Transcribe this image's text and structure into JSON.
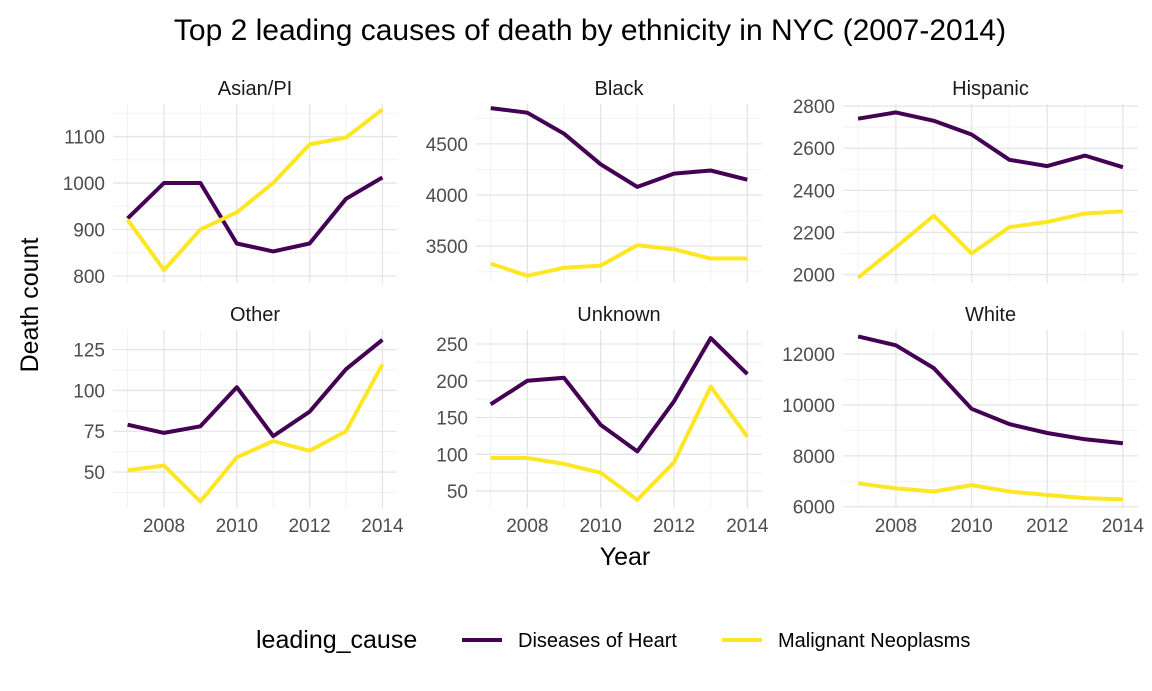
{
  "chart_data": {
    "type": "line",
    "title": "Top 2 leading causes of death by ethnicity in NYC (2007-2014)",
    "xlabel": "Year",
    "ylabel": "Death count",
    "x": [
      2007,
      2008,
      2009,
      2010,
      2011,
      2012,
      2013,
      2014
    ],
    "x_ticks": [
      "2008",
      "2010",
      "2012",
      "2014"
    ],
    "legend": {
      "title": "leading_cause",
      "placement": "bottom",
      "entries": [
        {
          "name": "Diseases of Heart",
          "color": "#440154"
        },
        {
          "name": "Malignant Neoplasms",
          "color": "#FDE725"
        }
      ]
    },
    "grid": true,
    "facets": [
      {
        "label": "Asian/PI",
        "ylim": [
          785,
          1170
        ],
        "y_ticks": [
          "800",
          "900",
          "1000",
          "1100"
        ],
        "series": [
          {
            "name": "Diseases of Heart",
            "values": [
              924,
              1000,
              1000,
              870,
              853,
              870,
              966,
              1012
            ]
          },
          {
            "name": "Malignant Neoplasms",
            "values": [
              921,
              813,
              900,
              937,
              1000,
              1083,
              1098,
              1158
            ]
          }
        ]
      },
      {
        "label": "Black",
        "ylim": [
          3140,
          4890
        ],
        "y_ticks": [
          "3500",
          "4000",
          "4500"
        ],
        "series": [
          {
            "name": "Diseases of Heart",
            "values": [
              4850,
              4805,
              4600,
              4300,
              4080,
              4210,
              4240,
              4150
            ]
          },
          {
            "name": "Malignant Neoplasms",
            "values": [
              3330,
              3210,
              3290,
              3310,
              3510,
              3470,
              3380,
              3380
            ]
          }
        ]
      },
      {
        "label": "Hispanic",
        "ylim": [
          1960,
          2810
        ],
        "y_ticks": [
          "2000",
          "2200",
          "2400",
          "2600",
          "2800"
        ],
        "series": [
          {
            "name": "Diseases of Heart",
            "values": [
              2740,
              2770,
              2730,
              2665,
              2545,
              2515,
              2565,
              2510
            ]
          },
          {
            "name": "Malignant Neoplasms",
            "values": [
              1985,
              2130,
              2280,
              2100,
              2225,
              2250,
              2290,
              2300
            ]
          }
        ]
      },
      {
        "label": "Other",
        "ylim": [
          28,
          137
        ],
        "y_ticks": [
          "50",
          "75",
          "100",
          "125"
        ],
        "series": [
          {
            "name": "Diseases of Heart",
            "values": [
              79,
              74,
              78,
              102,
              72,
              87,
              113,
              131
            ]
          },
          {
            "name": "Malignant Neoplasms",
            "values": [
              51,
              54,
              32,
              59,
              69,
              63,
              75,
              116
            ]
          }
        ]
      },
      {
        "label": "Unknown",
        "ylim": [
          27,
          269
        ],
        "y_ticks": [
          "50",
          "100",
          "150",
          "200",
          "250"
        ],
        "series": [
          {
            "name": "Diseases of Heart",
            "values": [
              168,
              200,
              204,
              140,
              104,
              172,
              258,
              209
            ]
          },
          {
            "name": "Malignant Neoplasms",
            "values": [
              95,
              95,
              87,
              75,
              38,
              89,
              192,
              124
            ]
          }
        ]
      },
      {
        "label": "White",
        "ylim": [
          5950,
          12950
        ],
        "y_ticks": [
          "6000",
          "8000",
          "10000",
          "12000"
        ],
        "series": [
          {
            "name": "Diseases of Heart",
            "values": [
              12700,
              12350,
              11450,
              9850,
              9250,
              8900,
              8650,
              8500
            ]
          },
          {
            "name": "Malignant Neoplasms",
            "values": [
              6920,
              6720,
              6600,
              6850,
              6600,
              6460,
              6340,
              6290
            ]
          }
        ]
      }
    ]
  }
}
